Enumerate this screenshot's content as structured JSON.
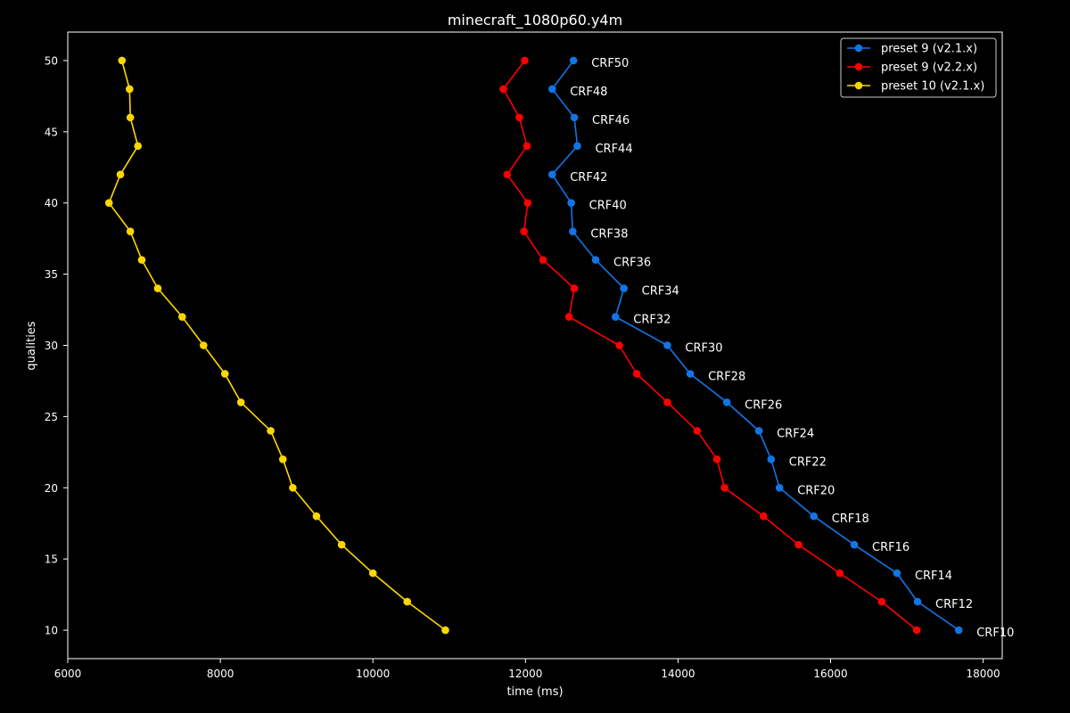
{
  "chart_data": {
    "type": "line",
    "title": "minecraft_1080p60.y4m",
    "xlabel": "time (ms)",
    "ylabel": "qualities",
    "xlim": [
      6000,
      18250
    ],
    "ylim": [
      8,
      52
    ],
    "xticks": [
      6000,
      8000,
      10000,
      12000,
      14000,
      16000,
      18000
    ],
    "yticks": [
      10,
      15,
      20,
      25,
      30,
      35,
      40,
      45,
      50
    ],
    "grid": false,
    "legend_position": "top-right",
    "y": [
      50,
      48,
      46,
      44,
      42,
      40,
      38,
      36,
      34,
      32,
      30,
      28,
      26,
      24,
      22,
      20,
      18,
      16,
      14,
      12,
      10
    ],
    "point_labels": [
      "CRF50",
      "CRF48",
      "CRF46",
      "CRF44",
      "CRF42",
      "CRF40",
      "CRF38",
      "CRF36",
      "CRF34",
      "CRF32",
      "CRF30",
      "CRF28",
      "CRF26",
      "CRF24",
      "CRF22",
      "CRF20",
      "CRF18",
      "CRF16",
      "CRF14",
      "CRF12",
      "CRF10"
    ],
    "series": [
      {
        "name": "preset 9 (v2.1.x)",
        "color": "#1175e6",
        "x": [
          12630,
          12350,
          12640,
          12680,
          12350,
          12600,
          12620,
          12920,
          13290,
          13180,
          13860,
          14160,
          14640,
          15060,
          15220,
          15330,
          15780,
          16310,
          16870,
          17140,
          17680
        ]
      },
      {
        "name": "preset 9 (v2.2.x)",
        "color": "#ff0000",
        "x": [
          11990,
          11710,
          11920,
          12020,
          11760,
          12030,
          11980,
          12230,
          12640,
          12570,
          13230,
          13460,
          13860,
          14250,
          14510,
          14610,
          15120,
          15580,
          16120,
          16670,
          17130
        ]
      },
      {
        "name": "preset 10 (v2.1.x)",
        "color": "#ffd700",
        "x": [
          6710,
          6810,
          6820,
          6920,
          6690,
          6540,
          6820,
          6970,
          7180,
          7500,
          7780,
          8060,
          8270,
          8660,
          8820,
          8950,
          9260,
          9590,
          10000,
          10450,
          10950
        ]
      }
    ]
  }
}
